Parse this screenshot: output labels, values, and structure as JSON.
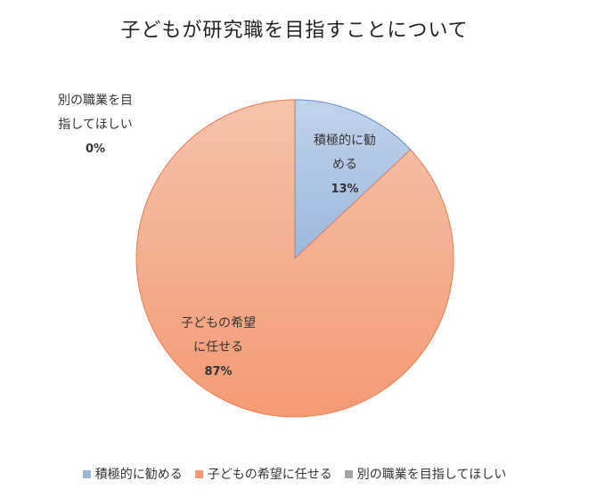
{
  "chart_data": {
    "type": "pie",
    "title": "子どもが研究職を目指すことについて",
    "slices": [
      {
        "label_lines": [
          "積極的に勧",
          "める"
        ],
        "legend": "積極的に勧める",
        "value": 13,
        "value_label": "13%",
        "color": "#9bb7dd",
        "color_light": "#c3d3eb",
        "stroke": "#5b8fd0"
      },
      {
        "label_lines": [
          "子どもの希望",
          "に任せる"
        ],
        "legend": "子どもの希望に任せる",
        "value": 87,
        "value_label": "87%",
        "color": "#f39a75",
        "color_light": "#f5c3ab",
        "stroke": "#ec7c4e"
      },
      {
        "label_lines": [
          "別の職業を目",
          "指してほしい"
        ],
        "legend": "別の職業を目指してほしい",
        "value": 0,
        "value_label": "0%",
        "color": "#a5a5a5",
        "color_light": "#cfcfcf",
        "stroke": "#8c8c8c"
      }
    ],
    "legend_position": "bottom"
  }
}
